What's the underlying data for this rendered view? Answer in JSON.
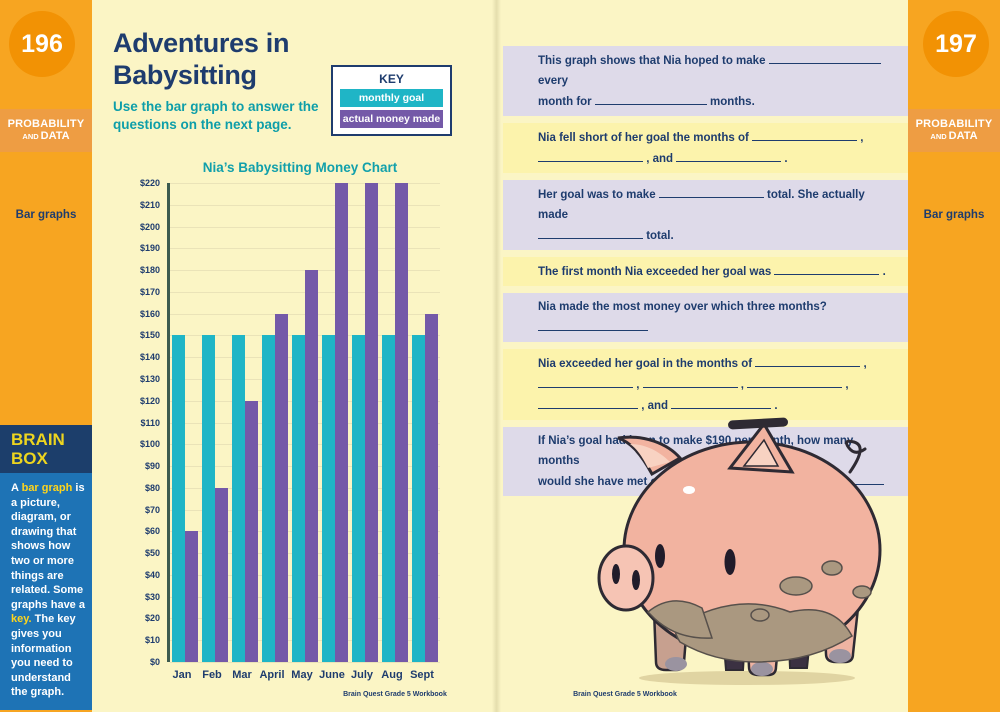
{
  "left_sidebar": {
    "page_number": "196",
    "tag_line1": "PROBABILITY",
    "tag_and": "AND",
    "tag_line2": "DATA",
    "topic": "Bar graphs",
    "brain_box": {
      "title_line1": "BRAIN",
      "title_line2": "BOX",
      "body_segments": [
        {
          "t": "A "
        },
        {
          "hl": "bar graph"
        },
        {
          "t": " is a picture, diagram, or drawing that shows how two or more things are related. Some graphs have a "
        },
        {
          "hl": "key."
        },
        {
          "t": " The key gives you information you need to understand the graph."
        }
      ]
    }
  },
  "right_sidebar": {
    "page_number": "197",
    "tag_line1": "PROBABILITY",
    "tag_and": "AND",
    "tag_line2": "DATA",
    "topic": "Bar graphs"
  },
  "left_page": {
    "title_lines": [
      "Adventures in",
      "Babysitting"
    ],
    "subtitle_lines": [
      [
        {
          "t": "Use the "
        },
        {
          "b": "bar graph"
        },
        {
          "t": " to answer the"
        }
      ],
      [
        {
          "t": "questions on the next page."
        }
      ]
    ],
    "key": {
      "title": "KEY",
      "items": [
        {
          "label": "monthly goal",
          "color": "#1FB5C6"
        },
        {
          "label": "actual money made",
          "color": "#7459A8"
        }
      ]
    },
    "footer": "Brain Quest Grade 5 Workbook"
  },
  "chart_data": {
    "type": "bar",
    "title": "Nia’s Babysitting Money Chart",
    "categories": [
      "Jan",
      "Feb",
      "Mar",
      "April",
      "May",
      "June",
      "July",
      "Aug",
      "Sept"
    ],
    "series": [
      {
        "name": "monthly goal",
        "color": "#1FB5C6",
        "values": [
          150,
          150,
          150,
          150,
          150,
          150,
          150,
          150,
          150
        ]
      },
      {
        "name": "actual money made",
        "color": "#7459A8",
        "values": [
          60,
          80,
          120,
          160,
          180,
          220,
          220,
          220,
          160
        ]
      }
    ],
    "xlabel": "",
    "ylabel": "",
    "ylim": [
      0,
      220
    ],
    "ytick_step": 10,
    "ytick_prefix": "$",
    "grid": true,
    "legend_position": "key box, top of left page"
  },
  "right_page": {
    "questions": [
      {
        "bg": "lavender",
        "lines": [
          [
            {
              "t": "This graph shows that Nia hoped to make "
            },
            {
              "blank": 112
            },
            {
              "t": " every"
            }
          ],
          [
            {
              "t": "month for "
            },
            {
              "blank": 112
            },
            {
              "t": " months."
            }
          ]
        ]
      },
      {
        "bg": "yellow",
        "lines": [
          [
            {
              "t": "Nia fell short of her goal the months of "
            },
            {
              "blank": 105
            },
            {
              "t": " ,"
            }
          ],
          [
            {
              "blank": 105
            },
            {
              "t": " , and "
            },
            {
              "blank": 105
            },
            {
              "t": " ."
            }
          ]
        ]
      },
      {
        "bg": "lavender",
        "lines": [
          [
            {
              "t": "Her goal was to make "
            },
            {
              "blank": 105
            },
            {
              "t": " total. She actually made"
            }
          ],
          [
            {
              "blank": 105
            },
            {
              "t": " total."
            }
          ]
        ]
      },
      {
        "bg": "yellow",
        "lines": [
          [
            {
              "t": "The first month Nia exceeded her goal was "
            },
            {
              "blank": 105
            },
            {
              "t": " ."
            }
          ]
        ]
      },
      {
        "bg": "lavender",
        "lines": [
          [
            {
              "t": "Nia made the most money over which three months? "
            },
            {
              "blank": 110
            }
          ]
        ]
      },
      {
        "bg": "yellow",
        "lines": [
          [
            {
              "t": "Nia exceeded her goal in the months of "
            },
            {
              "blank": 105
            },
            {
              "t": " ,"
            }
          ],
          [
            {
              "blank": 95
            },
            {
              "t": " , "
            },
            {
              "blank": 95
            },
            {
              "t": " , "
            },
            {
              "blank": 95
            },
            {
              "t": " ,"
            }
          ],
          [
            {
              "blank": 100
            },
            {
              "t": " , and "
            },
            {
              "blank": 100
            },
            {
              "t": " ."
            }
          ]
        ]
      },
      {
        "bg": "lavender",
        "lines": [
          [
            {
              "t": "If Nia’s goal had been to make $190 per month, how many months"
            }
          ],
          [
            {
              "t": "would she have met or exceeded that goal? "
            },
            {
              "blank": 105
            }
          ]
        ]
      }
    ],
    "footer": "Brain Quest Grade 5 Workbook"
  }
}
